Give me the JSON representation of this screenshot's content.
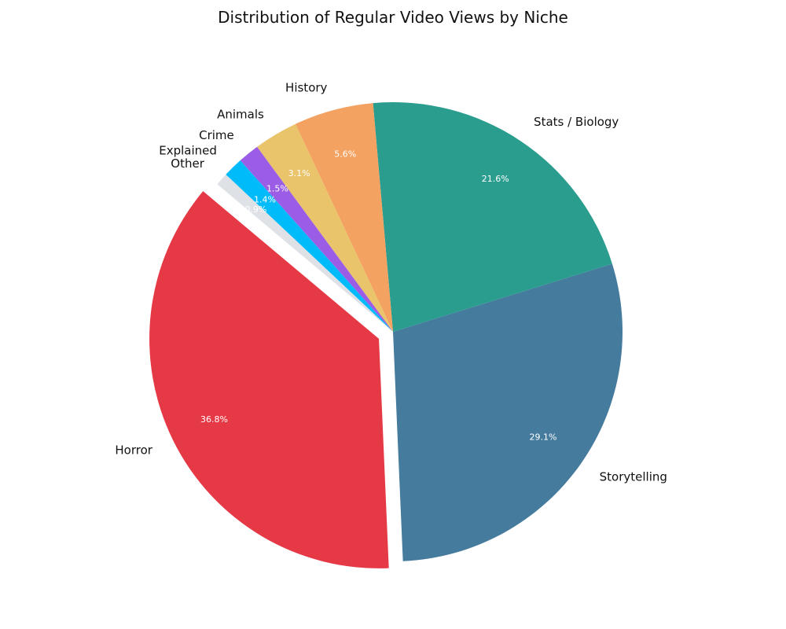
{
  "chart_data": {
    "type": "pie",
    "title": "Distribution of Regular Video Views by Niche",
    "slices": [
      {
        "label": "Horror",
        "value": 36.8,
        "pct_label": "36.8%",
        "color": "#e63946",
        "exploded": true
      },
      {
        "label": "Storytelling",
        "value": 29.1,
        "pct_label": "29.1%",
        "color": "#457b9d",
        "exploded": false
      },
      {
        "label": "Stats / Biology",
        "value": 21.6,
        "pct_label": "21.6%",
        "color": "#2a9d8f",
        "exploded": false
      },
      {
        "label": "History",
        "value": 5.6,
        "pct_label": "5.6%",
        "color": "#f4a261",
        "exploded": false
      },
      {
        "label": "Animals",
        "value": 3.1,
        "pct_label": "3.1%",
        "color": "#e9c46a",
        "exploded": false
      },
      {
        "label": "Crime",
        "value": 1.5,
        "pct_label": "1.5%",
        "color": "#9b5de5",
        "exploded": false
      },
      {
        "label": "Explained",
        "value": 1.4,
        "pct_label": "1.4%",
        "color": "#00bbf9",
        "exploded": false
      },
      {
        "label": "Other",
        "value": 0.9,
        "pct_label": "0.9%",
        "color": "#dee2e6",
        "exploded": false
      }
    ],
    "legend": "none"
  }
}
